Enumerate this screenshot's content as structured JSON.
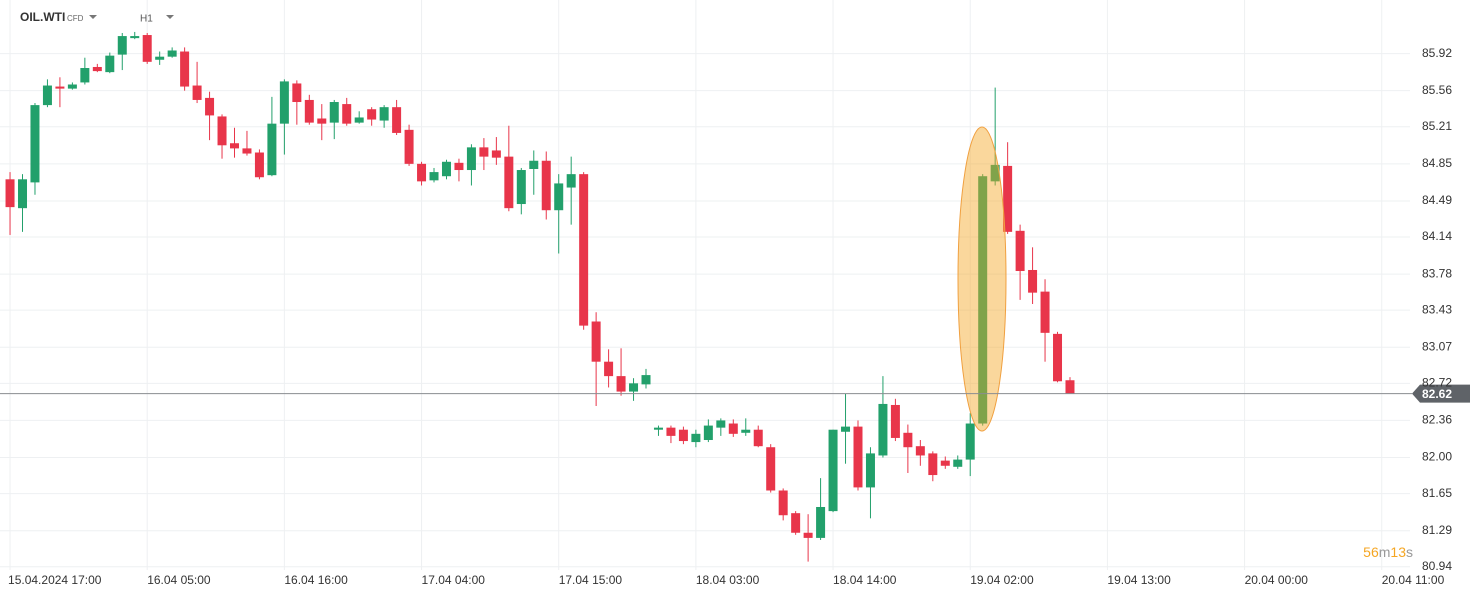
{
  "header": {
    "symbol": "OIL.WTI",
    "instrument_type": "CFD",
    "timeframe": "H1"
  },
  "chart_data": {
    "type": "candlestick",
    "categories": [
      "15.04.2024 17:00",
      null,
      null,
      null,
      null,
      null,
      null,
      null,
      null,
      null,
      null,
      "16.04 05:00",
      null,
      null,
      null,
      null,
      null,
      null,
      null,
      null,
      null,
      null,
      "16.04 16:00",
      null,
      null,
      null,
      null,
      null,
      null,
      null,
      null,
      null,
      null,
      "17.04 04:00",
      null,
      null,
      null,
      null,
      null,
      null,
      null,
      null,
      null,
      null,
      "17.04 15:00",
      null,
      null,
      null,
      null,
      null,
      null,
      null,
      null,
      null,
      null,
      "18.04 03:00",
      null,
      null,
      null,
      null,
      null,
      null,
      null,
      null,
      null,
      null,
      "18.04 14:00",
      null,
      null,
      null,
      null,
      null,
      null,
      null,
      null,
      null,
      null,
      "19.04 02:00",
      null,
      null,
      null,
      null,
      null,
      null,
      null,
      null,
      null,
      null,
      "19.04 13:00",
      null,
      null,
      null,
      null,
      null,
      null,
      null,
      null,
      null,
      null,
      "20.04 00:00",
      null,
      null,
      null,
      null,
      null,
      null,
      null,
      null,
      null,
      null,
      "20.04 11:00"
    ],
    "open": [
      84.7,
      84.42,
      84.67,
      85.42,
      85.6,
      85.58,
      85.64,
      85.79,
      85.74,
      85.91,
      86.07,
      86.1,
      85.86,
      85.89,
      85.94,
      85.61,
      85.49,
      85.31,
      85.05,
      85.0,
      84.96,
      84.74,
      85.24,
      85.63,
      85.47,
      85.29,
      85.25,
      85.43,
      85.25,
      85.38,
      85.27,
      85.4,
      85.18,
      84.85,
      84.69,
      84.73,
      84.86,
      84.79,
      85.01,
      84.98,
      84.92,
      84.46,
      84.8,
      84.88,
      84.4,
      84.62,
      84.75,
      83.32,
      82.93,
      82.79,
      82.64,
      82.71,
      82.27,
      82.29,
      82.27,
      82.15,
      82.17,
      82.29,
      82.33,
      82.24,
      82.27,
      82.1,
      81.68,
      81.46,
      81.27,
      81.22,
      81.48,
      82.25,
      82.3,
      81.71,
      82.02,
      82.51,
      82.24,
      82.11,
      82.04,
      81.97,
      81.91,
      81.98,
      82.33,
      84.68,
      84.83,
      84.2,
      83.82,
      83.61,
      83.2,
      82.75,
      null,
      null,
      null,
      null,
      null,
      null,
      null,
      null,
      null,
      null,
      null,
      null,
      null,
      null,
      null,
      null,
      null,
      null,
      null,
      null,
      null,
      null,
      null,
      null,
      null
    ],
    "high": [
      84.77,
      84.75,
      85.44,
      85.67,
      85.69,
      85.64,
      85.88,
      85.82,
      85.93,
      86.12,
      86.13,
      86.12,
      85.94,
      85.98,
      85.98,
      85.84,
      85.55,
      85.33,
      85.2,
      85.17,
      84.99,
      85.5,
      85.67,
      85.66,
      85.52,
      85.43,
      85.47,
      85.49,
      85.36,
      85.4,
      85.42,
      85.47,
      85.23,
      84.87,
      84.81,
      84.89,
      84.9,
      85.04,
      85.1,
      85.11,
      85.22,
      84.81,
      84.98,
      84.97,
      84.75,
      84.92,
      84.77,
      83.41,
      83.05,
      83.06,
      82.77,
      82.86,
      82.31,
      82.31,
      82.3,
      82.27,
      82.37,
      82.38,
      82.37,
      82.38,
      82.31,
      82.13,
      81.7,
      81.48,
      81.45,
      81.8,
      82.27,
      82.62,
      82.36,
      82.1,
      82.79,
      82.57,
      82.32,
      82.17,
      82.06,
      82.01,
      82.02,
      82.43,
      84.75,
      85.59,
      85.06,
      84.26,
      84.04,
      83.73,
      83.22,
      82.78,
      null,
      null,
      null,
      null,
      null,
      null,
      null,
      null,
      null,
      null,
      null,
      null,
      null,
      null,
      null,
      null,
      null,
      null,
      null,
      null,
      null,
      null,
      null,
      null,
      null
    ],
    "low": [
      84.16,
      84.19,
      84.55,
      85.4,
      85.4,
      85.57,
      85.62,
      85.74,
      85.73,
      85.76,
      86.06,
      85.82,
      85.81,
      85.88,
      85.56,
      85.44,
      85.08,
      84.9,
      84.91,
      84.93,
      84.7,
      84.73,
      84.94,
      85.23,
      85.23,
      85.08,
      85.09,
      85.22,
      85.24,
      85.22,
      85.2,
      85.13,
      84.83,
      84.64,
      84.67,
      84.7,
      84.68,
      84.64,
      84.79,
      84.84,
      84.39,
      84.36,
      84.55,
      84.31,
      83.98,
      84.26,
      83.24,
      82.5,
      82.68,
      82.6,
      82.55,
      82.67,
      82.21,
      82.14,
      82.13,
      82.1,
      82.15,
      82.21,
      82.2,
      82.21,
      82.1,
      81.66,
      81.39,
      81.25,
      80.99,
      81.2,
      81.47,
      81.94,
      81.68,
      81.41,
      82.0,
      82.16,
      81.85,
      81.92,
      81.77,
      81.89,
      81.89,
      81.82,
      82.31,
      84.64,
      84.17,
      83.53,
      83.49,
      82.93,
      82.73,
      82.62,
      null,
      null,
      null,
      null,
      null,
      null,
      null,
      null,
      null,
      null,
      null,
      null,
      null,
      null,
      null,
      null,
      null,
      null,
      null,
      null,
      null,
      null,
      null,
      null,
      null
    ],
    "close": [
      84.43,
      84.7,
      85.42,
      85.61,
      85.58,
      85.62,
      85.78,
      85.75,
      85.9,
      86.09,
      86.09,
      85.84,
      85.89,
      85.95,
      85.6,
      85.47,
      85.32,
      85.03,
      85.0,
      84.95,
      84.72,
      85.24,
      85.65,
      85.45,
      85.25,
      85.24,
      85.45,
      85.24,
      85.3,
      85.28,
      85.4,
      85.15,
      84.85,
      84.68,
      84.77,
      84.87,
      84.79,
      85.01,
      84.92,
      84.91,
      84.42,
      84.79,
      84.88,
      84.4,
      84.66,
      84.75,
      83.28,
      82.93,
      82.79,
      82.64,
      82.72,
      82.8,
      82.29,
      82.21,
      82.16,
      82.23,
      82.31,
      82.36,
      82.23,
      82.27,
      82.11,
      81.68,
      81.44,
      81.27,
      81.22,
      81.52,
      82.27,
      82.3,
      81.71,
      82.04,
      82.52,
      82.19,
      82.1,
      82.02,
      81.83,
      81.92,
      81.98,
      82.33,
      84.73,
      84.84,
      84.19,
      83.81,
      83.6,
      83.21,
      82.74,
      82.62,
      null,
      null,
      null,
      null,
      null,
      null,
      null,
      null,
      null,
      null,
      null,
      null,
      null,
      null,
      null,
      null,
      null,
      null,
      null,
      null,
      null,
      null,
      null,
      null,
      null
    ],
    "up_color": "#22a06b",
    "down_color": "#e8354a",
    "ylim": [
      80.86,
      86.44
    ],
    "yticks": [
      80.94,
      81.29,
      81.65,
      {
        "value": 82,
        "label": "82.00"
      },
      82.36,
      82.72,
      83.07,
      83.43,
      83.78,
      84.14,
      84.49,
      84.85,
      85.21,
      85.56,
      85.92
    ],
    "grid": true,
    "last_price": 82.62,
    "countdown": [
      "56",
      "m",
      "13",
      "s"
    ]
  }
}
